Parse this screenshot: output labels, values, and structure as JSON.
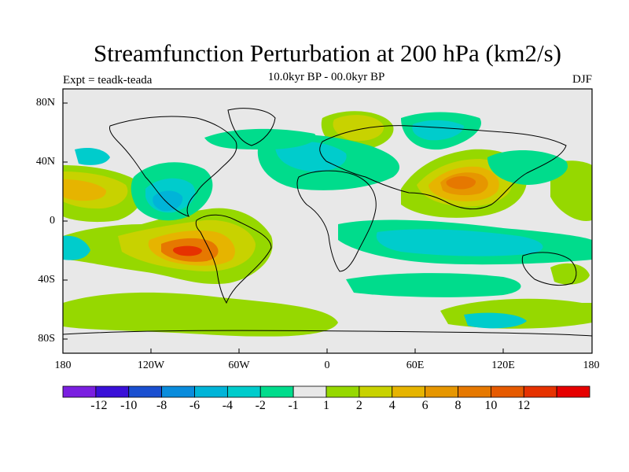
{
  "title": "Streamfunction Perturbation at 200 hPa (km2/s)",
  "subtitle": "10.0kyr BP - 00.0kyr BP",
  "experiment": "Expt = teadk-teada",
  "season": "DJF",
  "lat_ticks": [
    "80N",
    "40N",
    "0",
    "40S",
    "80S"
  ],
  "lon_ticks": [
    "180",
    "120W",
    "60W",
    "0",
    "60E",
    "120E",
    "180"
  ],
  "colorbar": {
    "labels": [
      "-12",
      "-10",
      "-8",
      "-6",
      "-4",
      "-2",
      "-1",
      "1",
      "2",
      "4",
      "6",
      "8",
      "10",
      "12"
    ],
    "colors": [
      "#7a1fe0",
      "#3a10d8",
      "#1a4fd0",
      "#0a8cdc",
      "#00b4d8",
      "#00cccc",
      "#00dc8c",
      "#e8e8e8",
      "#96d800",
      "#c8d200",
      "#e6b400",
      "#e69600",
      "#e67800",
      "#e65a00",
      "#e63200",
      "#e60000"
    ]
  }
}
